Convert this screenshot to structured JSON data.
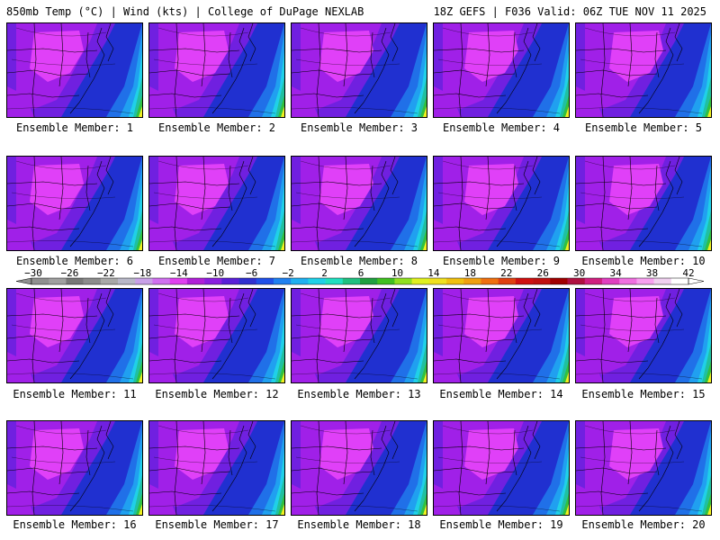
{
  "header": {
    "title_left": "850mb Temp (°C) | Wind (kts) | College of DuPage NEXLAB",
    "title_right": "18Z GEFS | F036 Valid: 06Z TUE NOV 11 2025"
  },
  "members": [
    {
      "label": "Ensemble Member: 1"
    },
    {
      "label": "Ensemble Member: 2"
    },
    {
      "label": "Ensemble Member: 3"
    },
    {
      "label": "Ensemble Member: 4"
    },
    {
      "label": "Ensemble Member: 5"
    },
    {
      "label": "Ensemble Member: 6"
    },
    {
      "label": "Ensemble Member: 7"
    },
    {
      "label": "Ensemble Member: 8"
    },
    {
      "label": "Ensemble Member: 9"
    },
    {
      "label": "Ensemble Member: 10"
    },
    {
      "label": "Ensemble Member: 11"
    },
    {
      "label": "Ensemble Member: 12"
    },
    {
      "label": "Ensemble Member: 13"
    },
    {
      "label": "Ensemble Member: 14"
    },
    {
      "label": "Ensemble Member: 15"
    },
    {
      "label": "Ensemble Member: 16"
    },
    {
      "label": "Ensemble Member: 17"
    },
    {
      "label": "Ensemble Member: 18"
    },
    {
      "label": "Ensemble Member: 19"
    },
    {
      "label": "Ensemble Member: 20"
    }
  ],
  "colorbar": {
    "labels": [
      "−30",
      "−26",
      "−22",
      "−18",
      "−14",
      "−10",
      "−6",
      "−2",
      "2",
      "6",
      "10",
      "14",
      "18",
      "22",
      "26",
      "30",
      "34",
      "38",
      "42"
    ],
    "colors": [
      "#909090",
      "#a0a0a0",
      "#787878",
      "#8c8c8c",
      "#a8a8a8",
      "#b8b8c8",
      "#c8a0e8",
      "#d070f0",
      "#e040f0",
      "#b020d8",
      "#8a20e0",
      "#5a20d8",
      "#3030d0",
      "#2050e8",
      "#2080f0",
      "#20b0f0",
      "#20d0e8",
      "#20e0c0",
      "#20c080",
      "#20a040",
      "#40c020",
      "#90e020",
      "#e0f020",
      "#f0e020",
      "#f0c010",
      "#f0a010",
      "#f07010",
      "#e04010",
      "#d01010",
      "#c01010",
      "#a00000",
      "#b01040",
      "#d02080",
      "#e040c0",
      "#f070e0",
      "#f8a0f0",
      "#f0d0f0",
      "#ffffff"
    ]
  },
  "palette": {
    "magenta": "#e040f8",
    "violet": "#a020e8",
    "purple": "#7020e0",
    "blue": "#2030d0",
    "mid_blue": "#2070e8",
    "light_blue": "#20a0f0",
    "cyan": "#20d0e8",
    "teal": "#20c0a0",
    "green": "#30c040",
    "yellow": "#f0f020"
  }
}
